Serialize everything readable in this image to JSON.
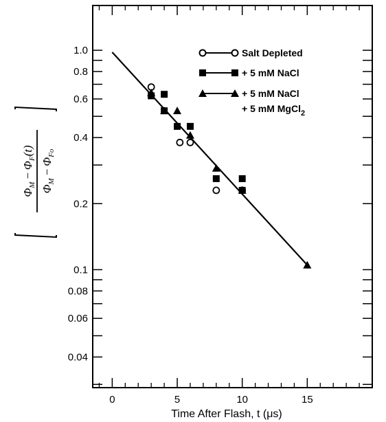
{
  "chart_data": {
    "type": "scatter",
    "title": "",
    "xlabel": "Time After Flash, t (μs)",
    "ylabel": {
      "num_a": "Φ",
      "num_a_sub": "M",
      "num_minus": "−",
      "num_b": "Φ",
      "num_b_sub": "F",
      "num_b_arg": "(t)",
      "den_a": "Φ",
      "den_a_sub": "M",
      "den_minus": "−",
      "den_b": "Φ",
      "den_b_sub": "Fo"
    },
    "x_scale": "linear",
    "y_scale": "log",
    "xlim": [
      -1.5,
      20
    ],
    "ylim": [
      0.029,
      1.6
    ],
    "x_ticks": [
      0,
      5,
      10,
      15
    ],
    "x_tick_labels": [
      "0",
      "5",
      "10",
      "15"
    ],
    "x_minor_ticks": [
      -1,
      1,
      2,
      3,
      4,
      6,
      7,
      8,
      9,
      11,
      12,
      13,
      14,
      16,
      17,
      18,
      19
    ],
    "y_labeled_ticks": [
      1.0,
      0.8,
      0.6,
      0.4,
      0.2,
      0.1,
      0.08,
      0.06,
      0.04
    ],
    "y_tick_labels": [
      "1.0",
      "0.8",
      "0.6",
      "0.4",
      "0.2",
      "0.1",
      "0.08",
      "0.06",
      "0.04"
    ],
    "y_unlabeled_ticks": [
      0.9,
      0.7,
      0.5,
      0.3,
      0.09,
      0.07,
      0.05,
      0.03
    ],
    "grid": false,
    "legend_position": "top-right",
    "series": [
      {
        "name": "Salt Depleted",
        "marker": "circle-open",
        "points": [
          [
            3,
            0.68
          ],
          [
            5.2,
            0.38
          ],
          [
            6,
            0.38
          ],
          [
            8,
            0.23
          ],
          [
            10,
            0.23
          ]
        ]
      },
      {
        "name": "+ 5 mM NaCl",
        "marker": "square-filled",
        "points": [
          [
            3,
            0.62
          ],
          [
            4,
            0.63
          ],
          [
            4,
            0.53
          ],
          [
            5,
            0.45
          ],
          [
            6,
            0.45
          ],
          [
            8,
            0.26
          ],
          [
            10,
            0.26
          ],
          [
            10,
            0.23
          ]
        ]
      },
      {
        "name_line1": "+ 5 mM NaCl",
        "name_line2": "+ 5 mM MgCl",
        "name_line2_sub": "2",
        "marker": "triangle-filled",
        "points": [
          [
            3,
            0.64
          ],
          [
            4,
            0.53
          ],
          [
            5,
            0.53
          ],
          [
            6,
            0.41
          ],
          [
            8,
            0.29
          ],
          [
            10,
            0.23
          ],
          [
            15,
            0.105
          ]
        ]
      }
    ],
    "fit_line": {
      "points": [
        [
          0,
          0.98
        ],
        [
          15,
          0.105
        ]
      ]
    }
  }
}
